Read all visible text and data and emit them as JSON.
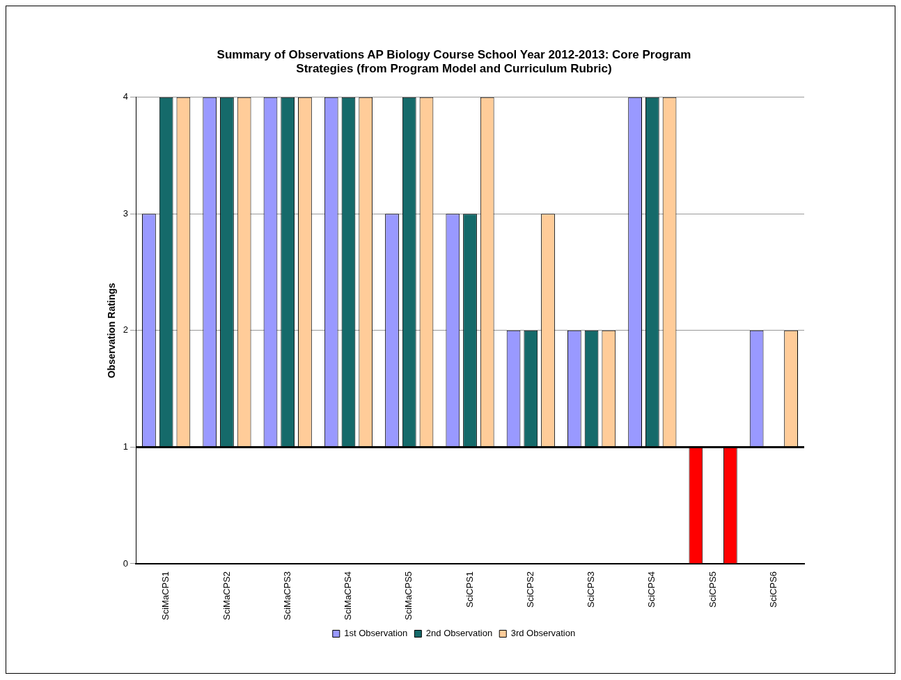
{
  "chart_data": {
    "type": "bar",
    "title": [
      "Summary of Observations AP Biology Course School Year 2012-2013: Core Program",
      "Strategies (from Program Model and Curriculum Rubric)"
    ],
    "ylabel": "Observation Ratings",
    "categories": [
      "SciMaCPS1",
      "SciMaCPS2",
      "SciMaCPS3",
      "SciMaCPS4",
      "SciMaCPS5",
      "SciCPS1",
      "SciCPS2",
      "SciCPS3",
      "SciCPS4",
      "SciCPS5",
      "SciCPS6"
    ],
    "series": [
      {
        "name": "1st Observation",
        "color": "#9999ff",
        "colors": [
          "#9999ff",
          "#9999ff",
          "#9999ff",
          "#9999ff",
          "#9999ff",
          "#9999ff",
          "#9999ff",
          "#9999ff",
          "#9999ff",
          "#ff0000",
          "#9999ff"
        ],
        "base": [
          1,
          1,
          1,
          1,
          1,
          1,
          1,
          1,
          1,
          1,
          1
        ],
        "values": [
          2,
          3,
          3,
          3,
          2,
          2,
          1,
          1,
          3,
          -1,
          1
        ]
      },
      {
        "name": "2nd Observation",
        "color": "#156a6a",
        "base": [
          1,
          1,
          1,
          1,
          1,
          1,
          1,
          1,
          1,
          null,
          null
        ],
        "values": [
          3,
          3,
          3,
          3,
          3,
          2,
          1,
          1,
          3,
          null,
          null
        ]
      },
      {
        "name": "3rd Observation",
        "color": "#ffcc99",
        "colors": [
          "#ffcc99",
          "#ffcc99",
          "#ffcc99",
          "#ffcc99",
          "#ffcc99",
          "#ffcc99",
          "#ffcc99",
          "#ffcc99",
          "#ffcc99",
          "#ff0000",
          "#ffcc99"
        ],
        "base": [
          1,
          1,
          1,
          1,
          1,
          1,
          1,
          1,
          1,
          1,
          1
        ],
        "values": [
          3,
          3,
          3,
          3,
          3,
          3,
          2,
          1,
          3,
          -1,
          1
        ]
      }
    ],
    "ylim": [
      0,
      4
    ],
    "yticks": [
      0,
      1,
      2,
      3,
      4
    ],
    "grid": "y",
    "legend": "bottom",
    "ref_lines": [
      {
        "axis": "y",
        "value": 1,
        "color": "#000000"
      }
    ]
  }
}
